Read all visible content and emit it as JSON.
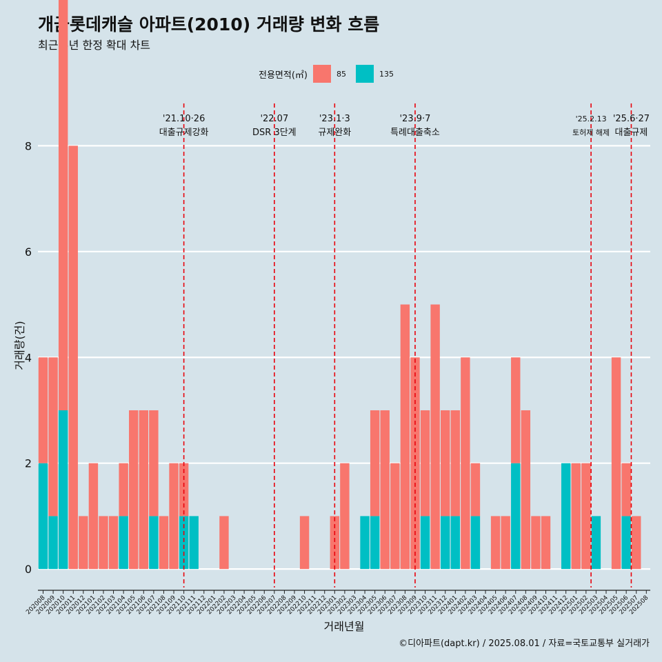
{
  "title": "개금롯데캐슬 아파트(2010) 거래량 변화 흐름",
  "subtitle": "최근 5년 한정 확대 차트",
  "caption": "©디아파트(dapt.kr) / 2025.08.01 / 자료=국토교통부 실거래가",
  "colors": {
    "s85": "#f8766d",
    "s135": "#00bfc4",
    "vline": "#e8000b",
    "background": "#d5e3ea",
    "grid": "#ffffff"
  },
  "chart_data": {
    "type": "bar",
    "title": "개금롯데캐슬 아파트(2010) 거래량 변화 흐름",
    "subtitle": "최근 5년 한정 확대 차트",
    "xlabel": "거래년월",
    "ylabel": "거래량(건)",
    "ylim": [
      -0.35,
      8.8
    ],
    "yticks": [
      0,
      2,
      4,
      6,
      8
    ],
    "grid": true,
    "legend": {
      "title": "전용면적(㎡)",
      "position": "top",
      "entries": [
        "85",
        "135"
      ]
    },
    "categories": [
      "202008",
      "202009",
      "202010",
      "202011",
      "202012",
      "202101",
      "202102",
      "202103",
      "202104",
      "202105",
      "202106",
      "202107",
      "202108",
      "202109",
      "202110",
      "202111",
      "202112",
      "202201",
      "202202",
      "202203",
      "202204",
      "202205",
      "202206",
      "202207",
      "202208",
      "202209",
      "202210",
      "202211",
      "202212",
      "202301",
      "202302",
      "202303",
      "202304",
      "202305",
      "202306",
      "202307",
      "202308",
      "202309",
      "202310",
      "202311",
      "202312",
      "202401",
      "202402",
      "202403",
      "202404",
      "202405",
      "202406",
      "202407",
      "202408",
      "202409",
      "202410",
      "202411",
      "202412",
      "202501",
      "202502",
      "202503",
      "202504",
      "202505",
      "202506",
      "202507",
      "202508"
    ],
    "series": [
      {
        "name": "85",
        "values": [
          2,
          3,
          8,
          8,
          1,
          2,
          1,
          1,
          1,
          3,
          3,
          2,
          1,
          2,
          1,
          0,
          0,
          0,
          1,
          0,
          0,
          0,
          0,
          0,
          0,
          0,
          1,
          0,
          0,
          1,
          2,
          0,
          0,
          2,
          3,
          2,
          5,
          4,
          2,
          5,
          2,
          2,
          4,
          1,
          0,
          1,
          1,
          2,
          3,
          1,
          1,
          0,
          0,
          2,
          2,
          0,
          0,
          4,
          1,
          1,
          0
        ]
      },
      {
        "name": "135",
        "values": [
          2,
          1,
          3,
          0,
          0,
          0,
          0,
          0,
          1,
          0,
          0,
          1,
          0,
          0,
          1,
          1,
          0,
          0,
          0,
          0,
          0,
          0,
          0,
          0,
          0,
          0,
          0,
          0,
          0,
          0,
          0,
          0,
          1,
          1,
          0,
          0,
          0,
          0,
          1,
          0,
          1,
          1,
          0,
          1,
          0,
          0,
          0,
          2,
          0,
          0,
          0,
          0,
          2,
          0,
          0,
          1,
          0,
          0,
          1,
          0,
          0
        ]
      }
    ],
    "annotations": [
      {
        "date": "'21.10·26",
        "text": "대출규제강화",
        "index": 14
      },
      {
        "date": "'22.07",
        "text": "DSR 3단계",
        "index": 23
      },
      {
        "date": "'23.1·3",
        "text": "규제완화",
        "index": 29
      },
      {
        "date": "'23.9·7",
        "text": "특례대출축소",
        "index": 37
      },
      {
        "date": "'25.2.13",
        "text": "토허제 해제",
        "index": 54.5
      },
      {
        "date": "'25.6·27",
        "text": "대출규제",
        "index": 58.5
      }
    ]
  }
}
